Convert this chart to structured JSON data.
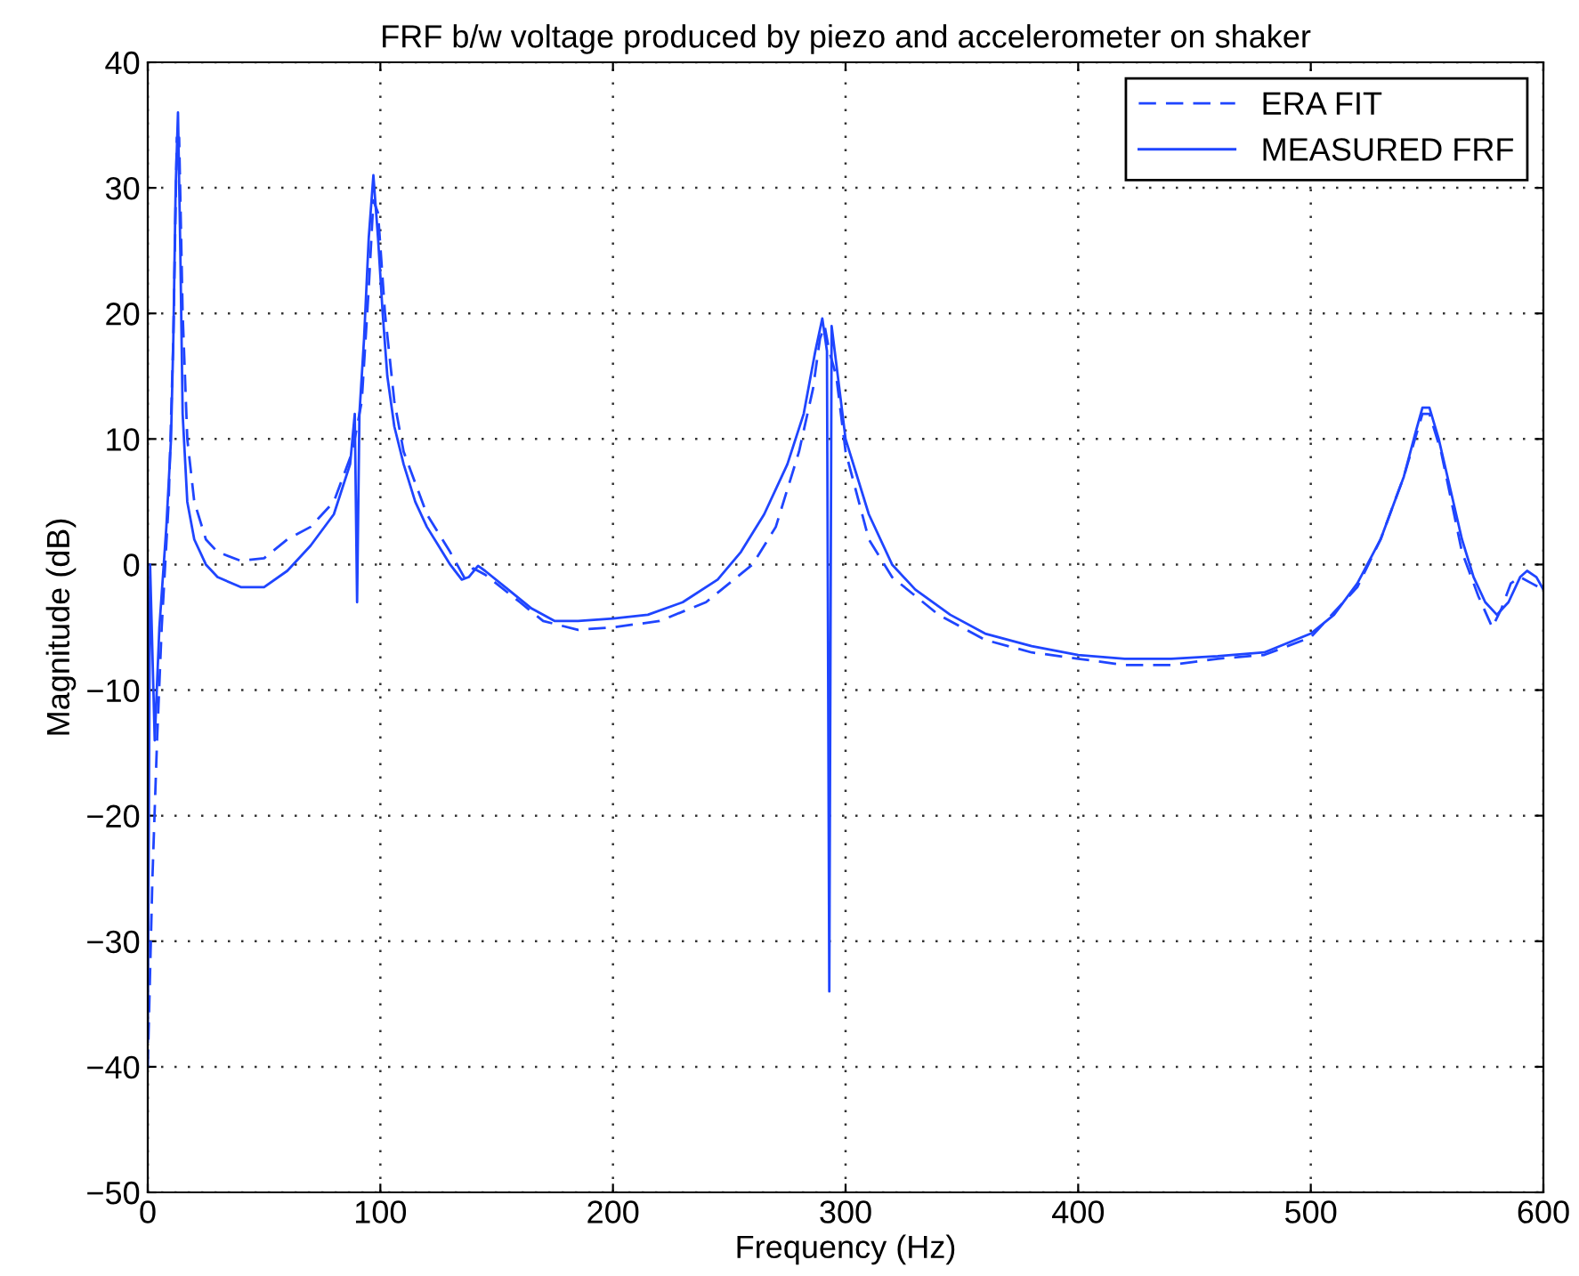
{
  "chart_data": {
    "type": "line",
    "title": "FRF b/w voltage produced by piezo and accelerometer on shaker",
    "xlabel": "Frequency (Hz)",
    "ylabel": "Magnitude (dB)",
    "xlim": [
      0,
      600
    ],
    "xticks": [
      0,
      100,
      200,
      300,
      400,
      500,
      600
    ],
    "ylim": [
      -50,
      40
    ],
    "yticks": [
      -50,
      -40,
      -30,
      -20,
      -10,
      0,
      10,
      20,
      30,
      40
    ],
    "grid": true,
    "legend": "top right",
    "series": [
      {
        "name": "ERA FIT",
        "color": "#1f45ff",
        "line_style": "dashed",
        "x": [
          0,
          2,
          4,
          6,
          9,
          11,
          12.5,
          13.5,
          15,
          17,
          20,
          25,
          30,
          40,
          50,
          60,
          70,
          80,
          88,
          92,
          95,
          97,
          99,
          102,
          106,
          110,
          120,
          130,
          136,
          140,
          145,
          160,
          170,
          185,
          200,
          220,
          240,
          260,
          270,
          280,
          286,
          289,
          291,
          293,
          296,
          300,
          310,
          320,
          340,
          360,
          380,
          400,
          420,
          440,
          460,
          480,
          500,
          520,
          530,
          540,
          548,
          551,
          556,
          565,
          572,
          578,
          582,
          586,
          590,
          595,
          600
        ],
        "values": [
          -40,
          -25,
          -14,
          -5,
          5,
          18,
          34,
          34,
          20,
          10,
          5,
          2,
          1,
          0.3,
          0.5,
          2,
          3,
          5,
          9,
          13,
          22,
          29,
          28,
          20,
          13,
          9,
          4,
          1,
          -1,
          -0.3,
          -0.8,
          -3,
          -4.5,
          -5.2,
          -5,
          -4.5,
          -3,
          0,
          3,
          9,
          14,
          18,
          19,
          17,
          15,
          9,
          2,
          -1,
          -4,
          -6,
          -7,
          -7.5,
          -8,
          -8,
          -7.5,
          -7.2,
          -5.8,
          -1.8,
          2,
          7,
          12,
          12,
          9,
          1,
          -2.5,
          -5,
          -3.5,
          -1.5,
          -1,
          -1.5,
          -2
        ]
      },
      {
        "name": "MEASURED FRF",
        "color": "#1f45ff",
        "line_style": "solid",
        "x": [
          0,
          1,
          3,
          5,
          8,
          10,
          11,
          12,
          13,
          14,
          15,
          17,
          20,
          25,
          30,
          40,
          50,
          60,
          70,
          80,
          87,
          89,
          90,
          91,
          93,
          95,
          97,
          99,
          101,
          103,
          106,
          110,
          115,
          120,
          125,
          130,
          135,
          138,
          142,
          145,
          155,
          165,
          175,
          185,
          200,
          215,
          230,
          245,
          255,
          265,
          275,
          282,
          287,
          290,
          292,
          293,
          294,
          296,
          300,
          310,
          320,
          330,
          345,
          360,
          380,
          400,
          420,
          440,
          460,
          480,
          500,
          510,
          520,
          530,
          540,
          545,
          548,
          551,
          555,
          560,
          565,
          570,
          575,
          580,
          585,
          590,
          593,
          597,
          600
        ],
        "values": [
          -38,
          0,
          -14,
          -5,
          3,
          10,
          18,
          30,
          36,
          25,
          12,
          5,
          2,
          0,
          -1,
          -1.8,
          -1.8,
          -0.5,
          1.5,
          4,
          8,
          12,
          -3,
          12,
          18,
          26,
          31,
          26,
          20,
          15,
          11,
          8,
          5,
          3,
          1.5,
          0,
          -1.2,
          -1,
          -0.1,
          -0.5,
          -2,
          -3.5,
          -4.5,
          -4.5,
          -4.3,
          -4,
          -3,
          -1.2,
          1,
          4,
          8,
          12,
          17,
          19.6,
          17,
          -34,
          19,
          16,
          10,
          4,
          0,
          -2,
          -4,
          -5.5,
          -6.5,
          -7.2,
          -7.5,
          -7.5,
          -7.3,
          -7,
          -5.5,
          -4,
          -1.5,
          2,
          7,
          10.5,
          12.5,
          12.5,
          10,
          6,
          2,
          -1,
          -3,
          -4,
          -3,
          -1,
          -0.5,
          -1,
          -2
        ]
      }
    ]
  }
}
